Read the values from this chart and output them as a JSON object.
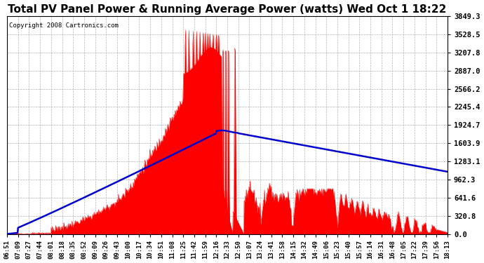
{
  "title": "Total PV Panel Power & Running Average Power (watts) Wed Oct 1 18:22",
  "copyright": "Copyright 2008 Cartronics.com",
  "title_fontsize": 11,
  "bg_color": "#ffffff",
  "plot_bg_color": "#ffffff",
  "grid_color": "#aaaaaa",
  "fill_color": "#ff0000",
  "line_color": "#0000cc",
  "yticks": [
    0.0,
    320.8,
    641.6,
    962.3,
    1283.1,
    1603.9,
    1924.7,
    2245.4,
    2566.2,
    2887.0,
    3207.8,
    3528.5,
    3849.3
  ],
  "ymax": 3849.3,
  "xtick_labels": [
    "06:51",
    "07:09",
    "07:27",
    "07:44",
    "08:01",
    "08:18",
    "08:35",
    "08:52",
    "09:09",
    "09:26",
    "09:43",
    "10:00",
    "10:17",
    "10:34",
    "10:51",
    "11:08",
    "11:25",
    "11:42",
    "11:59",
    "12:16",
    "12:33",
    "12:50",
    "13:07",
    "13:24",
    "13:41",
    "13:58",
    "14:15",
    "14:32",
    "14:49",
    "15:06",
    "15:23",
    "15:40",
    "15:57",
    "16:14",
    "16:31",
    "16:48",
    "17:05",
    "17:22",
    "17:39",
    "17:56",
    "18:13"
  ]
}
